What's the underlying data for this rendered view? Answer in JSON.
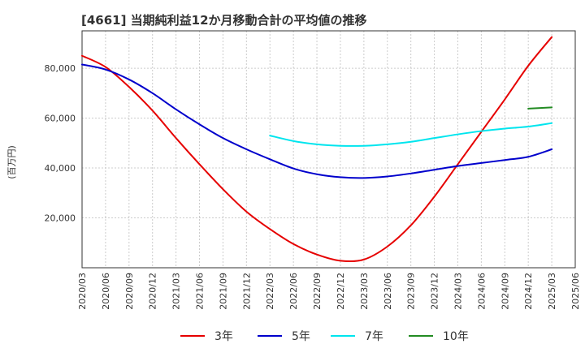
{
  "chart_data": {
    "type": "line",
    "title": "[4661]  当期純利益12か月移動合計の平均値の推移",
    "ylabel": "(百万円)",
    "xlabel": "",
    "ylim": [
      0,
      95000
    ],
    "grid": true,
    "legend_position": "bottom",
    "x_ticks": [
      "2020/03",
      "2020/06",
      "2020/09",
      "2020/12",
      "2021/03",
      "2021/06",
      "2021/09",
      "2021/12",
      "2022/03",
      "2022/06",
      "2022/09",
      "2022/12",
      "2023/03",
      "2023/06",
      "2023/09",
      "2023/12",
      "2024/03",
      "2024/06",
      "2024/09",
      "2024/12",
      "2025/03",
      "2025/06"
    ],
    "y_ticks": [
      {
        "value": 20000,
        "label": "20,000"
      },
      {
        "value": 40000,
        "label": "40,000"
      },
      {
        "value": 60000,
        "label": "60,000"
      },
      {
        "value": 80000,
        "label": "80,000"
      }
    ],
    "series": [
      {
        "name": "3年",
        "color": "#e60000",
        "x": [
          "2020/03",
          "2020/06",
          "2020/09",
          "2020/12",
          "2021/03",
          "2021/06",
          "2021/09",
          "2021/12",
          "2022/03",
          "2022/06",
          "2022/09",
          "2022/12",
          "2023/03",
          "2023/06",
          "2023/09",
          "2023/12",
          "2024/03",
          "2024/06",
          "2024/09",
          "2024/12",
          "2025/03"
        ],
        "values": [
          85000,
          80500,
          72500,
          63000,
          52000,
          41500,
          31500,
          22500,
          15500,
          9500,
          5300,
          2800,
          3300,
          8500,
          17000,
          28500,
          41500,
          54500,
          67500,
          81000,
          92500
        ]
      },
      {
        "name": "5年",
        "color": "#0000cc",
        "x": [
          "2020/03",
          "2020/06",
          "2020/09",
          "2020/12",
          "2021/03",
          "2021/06",
          "2021/09",
          "2021/12",
          "2022/03",
          "2022/06",
          "2022/09",
          "2022/12",
          "2023/03",
          "2023/06",
          "2023/09",
          "2023/12",
          "2024/03",
          "2024/06",
          "2024/09",
          "2024/12",
          "2025/03"
        ],
        "values": [
          81500,
          79500,
          75500,
          70000,
          63500,
          57500,
          52000,
          47500,
          43500,
          39800,
          37500,
          36300,
          36000,
          36600,
          37800,
          39300,
          40800,
          42000,
          43200,
          44500,
          47500
        ]
      },
      {
        "name": "7年",
        "color": "#00e5ee",
        "x": [
          "2022/03",
          "2022/06",
          "2022/09",
          "2022/12",
          "2023/03",
          "2023/06",
          "2023/09",
          "2023/12",
          "2024/03",
          "2024/06",
          "2024/09",
          "2024/12",
          "2025/03"
        ],
        "values": [
          53000,
          50800,
          49500,
          48900,
          48900,
          49500,
          50500,
          52000,
          53500,
          54800,
          55800,
          56600,
          58000
        ]
      },
      {
        "name": "10年",
        "color": "#228b22",
        "x": [
          "2024/12",
          "2025/03"
        ],
        "values": [
          63800,
          64300
        ]
      }
    ]
  }
}
